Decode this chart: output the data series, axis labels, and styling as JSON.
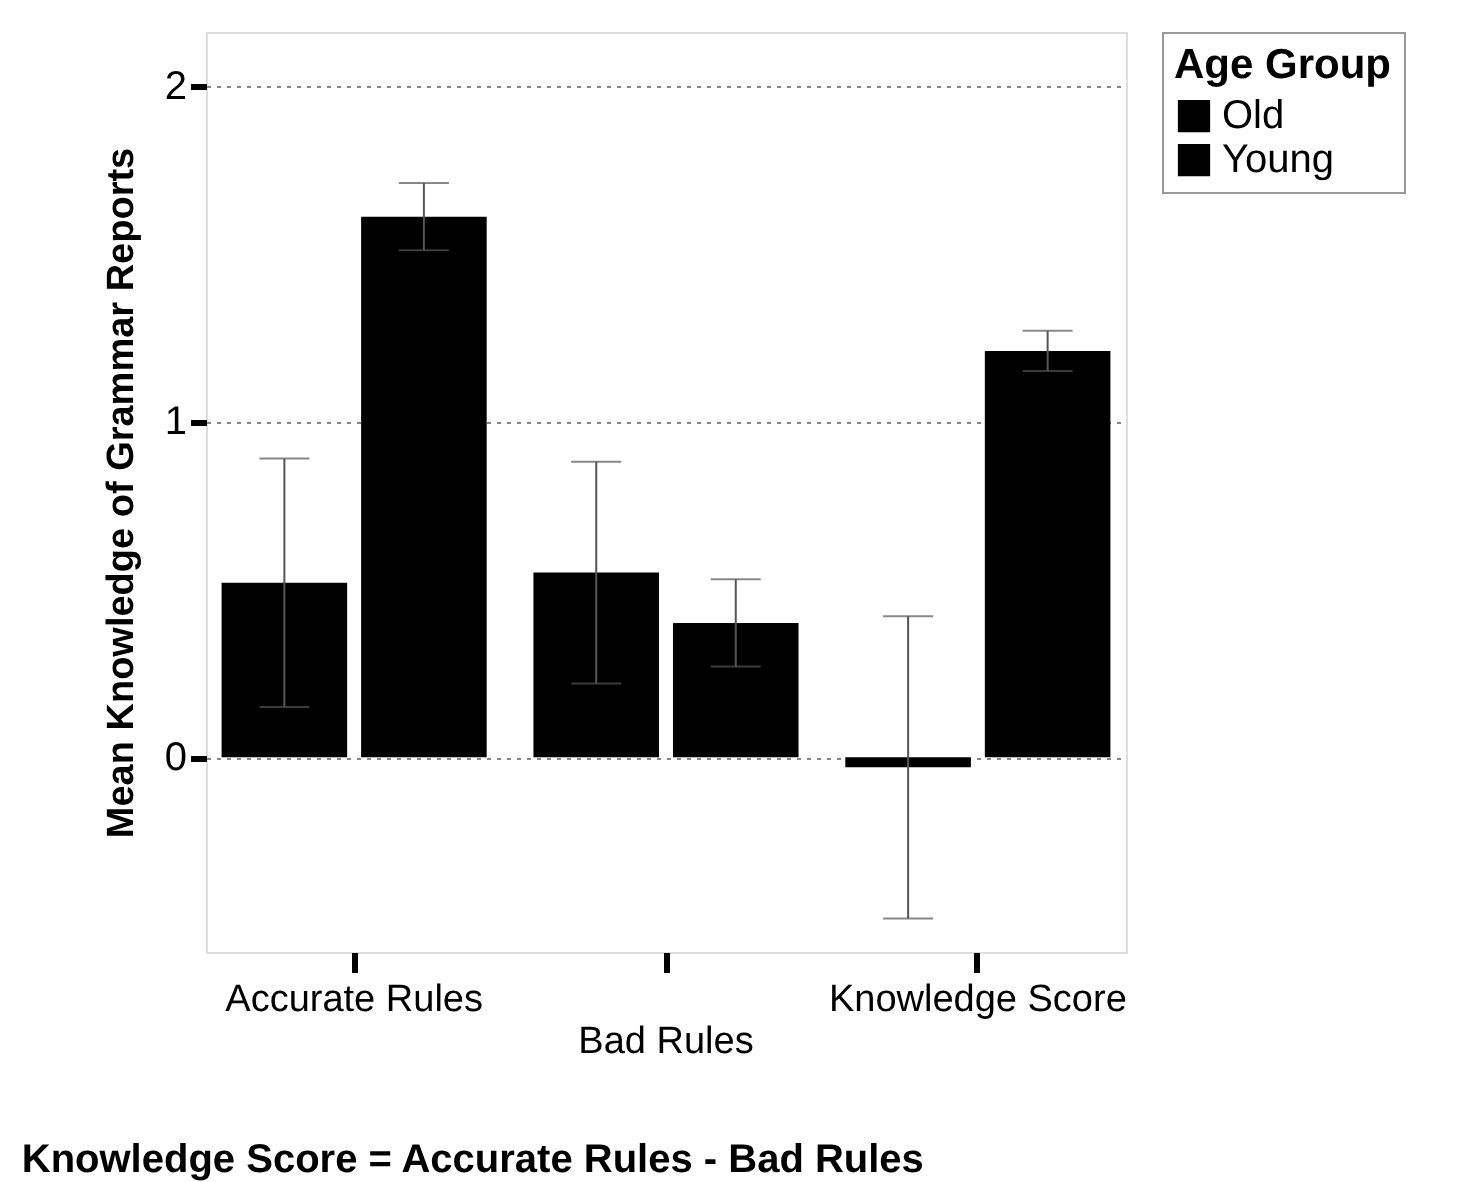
{
  "chart_data": {
    "type": "bar",
    "ylabel": "Mean Knowledge of Grammar Reports",
    "legend_title": "Age Group",
    "categories": [
      "Accurate Rules",
      "Bad Rules",
      "Knowledge Score"
    ],
    "series": [
      {
        "name": "Old",
        "color": "#000000",
        "values": [
          0.52,
          0.55,
          -0.03
        ],
        "errors": [
          0.37,
          0.33,
          0.45
        ]
      },
      {
        "name": "Young",
        "color": "#000000",
        "values": [
          1.61,
          0.4,
          1.21
        ],
        "errors": [
          0.1,
          0.13,
          0.06
        ]
      }
    ],
    "ylim": [
      -0.58,
      2.16
    ],
    "yticks": [
      0,
      1,
      2
    ],
    "grid": "y",
    "legend": "top right",
    "annotations": [
      "Knowledge Score = Accurate Rules - Bad Rules"
    ]
  }
}
